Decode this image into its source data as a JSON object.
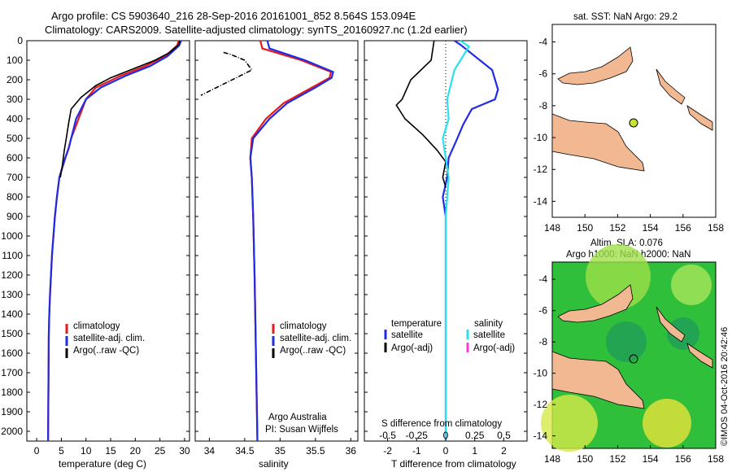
{
  "header": {
    "line1": "Argo profile: CS 5903640_216 28-Sep-2016 20161001_852 8.564S 153.094E",
    "line2": "Climatology: CARS2009. Satellite-adjusted climatology: synTS_20160927.nc (1.2d earlier)"
  },
  "colors": {
    "climatology": "#e8191c",
    "satellite": "#1f2ce6",
    "argo": "#000000",
    "sal_satellite": "#29e0f0",
    "sal_argo": "#ff35d9",
    "land": "#f2b892",
    "marker_fill": "#c7e62a"
  },
  "depth_ticks": [
    "0",
    "100",
    "200",
    "300",
    "400",
    "500",
    "600",
    "700",
    "800",
    "900",
    "1000",
    "1100",
    "1200",
    "1300",
    "1400",
    "1500",
    "1600",
    "1700",
    "1800",
    "1900",
    "2000"
  ],
  "panels": {
    "temperature": {
      "xlabel": "temperature (deg C)",
      "xticks": [
        "0",
        "5",
        "10",
        "15",
        "20",
        "25",
        "30"
      ],
      "legend": [
        "climatology",
        "satellite-adj. clim.",
        "Argo(..raw -QC)"
      ]
    },
    "salinity": {
      "xlabel": "salinity",
      "xticks": [
        "34",
        "34.5",
        "35",
        "35.5",
        "36"
      ],
      "legend": [
        "climatology",
        "satellite-adj. clim.",
        "Argo(..raw -QC)"
      ],
      "note1": "Argo Australia",
      "note2": "PI: Susan Wijffels"
    },
    "difference": {
      "top_label": "S difference from climatology",
      "top_ticks": [
        "-0.5",
        "-0.25",
        "0",
        "0.25",
        "0.5"
      ],
      "bottom_ticks": [
        "-2",
        "-1",
        "0",
        "1",
        "2"
      ],
      "xlabel": "T difference from climatology",
      "legend_temp_title": "temperature",
      "legend_sal_title": "salinity",
      "legend_temp": [
        "satellite",
        "Argo(-adj)"
      ],
      "legend_sal": [
        "satellite",
        "Argo(-adj)"
      ]
    },
    "map_sst": {
      "title": "sat. SST: NaN Argo: 29.2",
      "yticks": [
        "-4",
        "-6",
        "-8",
        "-10",
        "-12",
        "-14"
      ],
      "xticks": [
        "148",
        "150",
        "152",
        "154",
        "156",
        "158"
      ]
    },
    "map_sla": {
      "title1": "Altim. SLA: 0.076",
      "title2": "Argo h1000: NaN h2000: NaN",
      "yticks": [
        "-4",
        "-6",
        "-8",
        "-10",
        "-12",
        "-14"
      ],
      "xticks": [
        "148",
        "150",
        "152",
        "154",
        "156",
        "158"
      ]
    }
  },
  "footer": {
    "credit": "©IMOS 04-Oct-2016 20:42:46"
  },
  "chart_data": [
    {
      "type": "line",
      "panel": "temperature",
      "xlabel": "temperature (deg C)",
      "ylabel": "",
      "xlim": [
        -2,
        31
      ],
      "ylim": [
        2050,
        0
      ],
      "series": [
        {
          "name": "climatology",
          "color": "#e8191c",
          "x": [
            28.8,
            28.5,
            26,
            22,
            17,
            12,
            10,
            8.5,
            7,
            6.5,
            5.8,
            5.2,
            4.6,
            4.1,
            3.7,
            3.4,
            3.1,
            2.9,
            2.7,
            2.55,
            2.45,
            2.3
          ],
          "y": [
            0,
            25,
            80,
            130,
            180,
            240,
            300,
            400,
            500,
            550,
            600,
            650,
            700,
            800,
            900,
            1000,
            1100,
            1200,
            1300,
            1400,
            1500,
            2050
          ]
        },
        {
          "name": "satellite-adj. clim.",
          "color": "#1f2ce6",
          "x": [
            29.3,
            28.9,
            26.5,
            23,
            18,
            13,
            10,
            8,
            7,
            6.5,
            5.8,
            5.2,
            4.6,
            4.1,
            3.7,
            3.4,
            3.1,
            2.9,
            2.7,
            2.55,
            2.45,
            2.3
          ],
          "y": [
            0,
            25,
            80,
            130,
            180,
            240,
            300,
            400,
            500,
            550,
            600,
            650,
            700,
            800,
            900,
            1000,
            1100,
            1200,
            1300,
            1400,
            1500,
            2050
          ]
        },
        {
          "name": "Argo(..raw -QC)",
          "color": "#000000",
          "x": [
            29,
            28.8,
            27,
            24,
            20,
            15,
            12,
            9,
            7,
            6.5,
            6,
            5.6,
            5.2,
            4.8
          ],
          "y": [
            0,
            20,
            60,
            100,
            140,
            190,
            230,
            290,
            350,
            420,
            500,
            560,
            640,
            700
          ]
        }
      ]
    },
    {
      "type": "line",
      "panel": "salinity",
      "xlabel": "salinity",
      "ylabel": "",
      "xlim": [
        33.8,
        36.1
      ],
      "ylim": [
        2050,
        0
      ],
      "series": [
        {
          "name": "climatology",
          "color": "#e8191c",
          "x": [
            34.72,
            34.75,
            35.3,
            35.72,
            35.7,
            35.45,
            35.05,
            34.8,
            34.6,
            34.58,
            34.6,
            34.62,
            34.64,
            34.68
          ],
          "y": [
            0,
            40,
            100,
            160,
            190,
            240,
            320,
            400,
            500,
            600,
            700,
            900,
            1200,
            2050
          ]
        },
        {
          "name": "satellite-adj. clim.",
          "color": "#1f2ce6",
          "x": [
            34.82,
            34.85,
            35.35,
            35.75,
            35.73,
            35.5,
            35.1,
            34.85,
            34.62,
            34.58,
            34.6,
            34.62,
            34.64,
            34.68
          ],
          "y": [
            0,
            40,
            100,
            160,
            190,
            240,
            320,
            400,
            500,
            600,
            700,
            900,
            1200,
            2050
          ]
        },
        {
          "name": "Argo(..raw -QC)",
          "color": "#000000",
          "x": [
            34.2,
            34.3,
            34.5,
            34.6,
            34.38,
            34.1,
            33.88
          ],
          "y": [
            60,
            70,
            100,
            150,
            190,
            240,
            280
          ]
        }
      ]
    },
    {
      "type": "line",
      "panel": "difference",
      "xlabel": "T difference from climatology",
      "ylabel": "",
      "xlim": [
        -2.8,
        2.8
      ],
      "ylim": [
        2050,
        0
      ],
      "series": [
        {
          "name": "temperature satellite",
          "color": "#1f2ce6",
          "x": [
            0.3,
            0.5,
            1.6,
            1.8,
            1.7,
            0.9,
            0.6,
            0.4,
            0.1,
            0.05,
            -0.1,
            0,
            0,
            0
          ],
          "y": [
            0,
            20,
            150,
            250,
            300,
            350,
            430,
            500,
            600,
            700,
            800,
            900,
            1200,
            2050
          ]
        },
        {
          "name": "temperature Argo(-adj)",
          "color": "#000000",
          "x": [
            -0.4,
            -0.5,
            -1.2,
            -1.5,
            -1.7,
            -1.4,
            -0.8,
            -0.3,
            0,
            -0.1,
            0
          ],
          "y": [
            0,
            100,
            200,
            300,
            330,
            400,
            480,
            560,
            620,
            700,
            750
          ]
        },
        {
          "name": "salinity satellite",
          "color": "#29e0f0",
          "x": [
            0.5,
            0.8,
            0.3,
            0.05,
            0.1,
            -0.1,
            0.1,
            0,
            0,
            0
          ],
          "y": [
            0,
            30,
            150,
            300,
            400,
            500,
            700,
            900,
            1200,
            2050
          ]
        }
      ]
    }
  ]
}
